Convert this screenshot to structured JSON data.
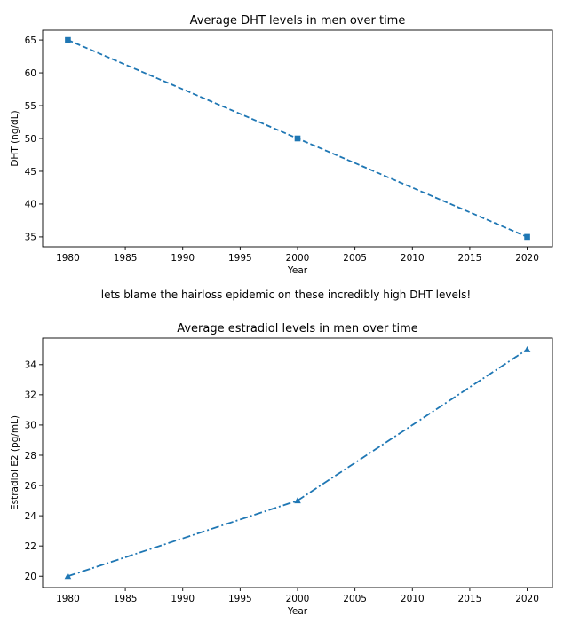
{
  "caption": "lets blame the hairloss epidemic on these incredibly high DHT levels!",
  "colors": {
    "line": "#1f77b4",
    "axis": "#000000",
    "text": "#000000"
  },
  "chart_data": [
    {
      "type": "line",
      "title": "Average DHT levels in men over time",
      "xlabel": "Year",
      "ylabel": "DHT (ng/dL)",
      "x": [
        1980,
        2000,
        2020
      ],
      "series": [
        {
          "name": "DHT",
          "values": [
            65,
            50,
            35
          ],
          "marker": "square",
          "linestyle": "dashed"
        }
      ],
      "xlim": [
        1977.8,
        2022.2
      ],
      "ylim": [
        33.5,
        66.5
      ],
      "xticks": [
        1980,
        1985,
        1990,
        1995,
        2000,
        2005,
        2010,
        2015,
        2020
      ],
      "yticks": [
        35,
        40,
        45,
        50,
        55,
        60,
        65
      ],
      "grid": false
    },
    {
      "type": "line",
      "title": "Average estradiol levels in men over time",
      "xlabel": "Year",
      "ylabel": "Estradiol E2 (pg/mL)",
      "x": [
        1980,
        2000,
        2020
      ],
      "series": [
        {
          "name": "Estradiol",
          "values": [
            20,
            25,
            35
          ],
          "marker": "triangle",
          "linestyle": "dashdot"
        }
      ],
      "xlim": [
        1977.8,
        2022.2
      ],
      "ylim": [
        19.25,
        35.75
      ],
      "xticks": [
        1980,
        1985,
        1990,
        1995,
        2000,
        2005,
        2010,
        2015,
        2020
      ],
      "yticks": [
        20,
        22,
        24,
        26,
        28,
        30,
        32,
        34
      ],
      "grid": false
    }
  ]
}
